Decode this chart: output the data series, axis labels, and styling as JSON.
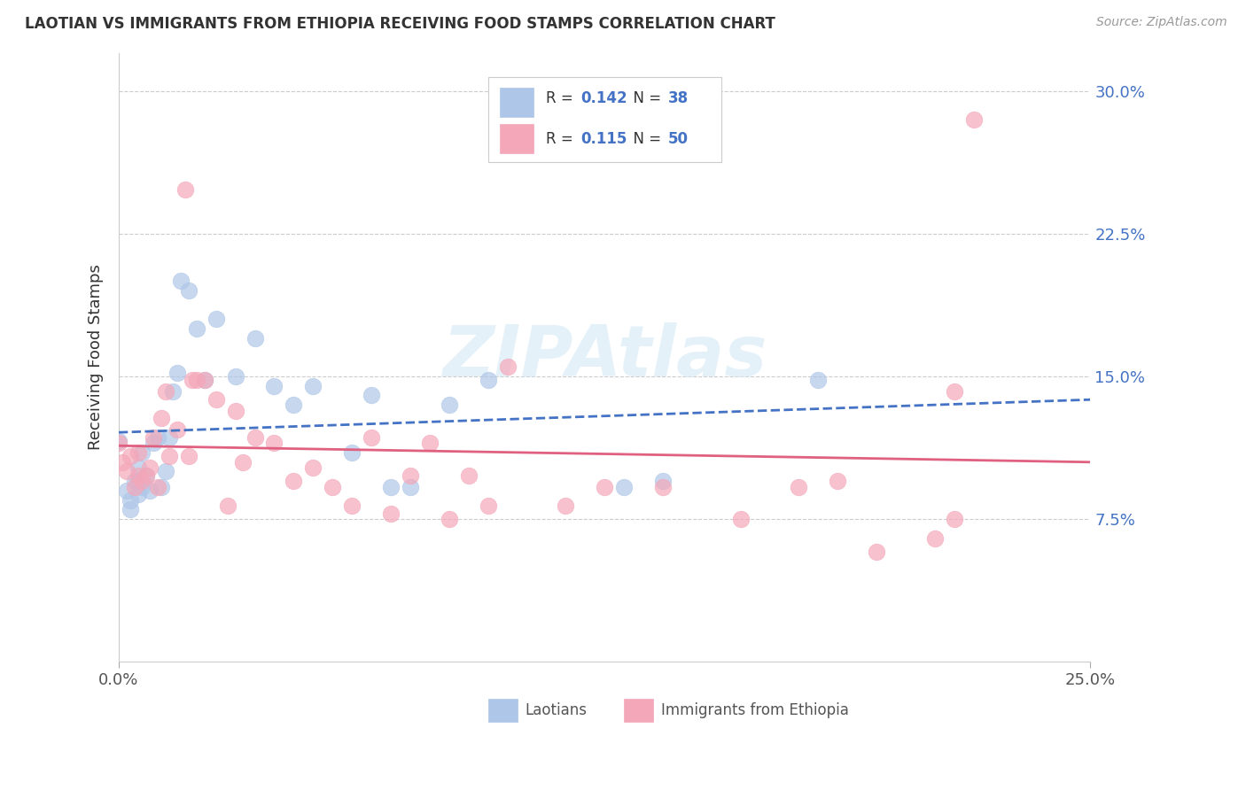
{
  "title": "LAOTIAN VS IMMIGRANTS FROM ETHIOPIA RECEIVING FOOD STAMPS CORRELATION CHART",
  "source": "Source: ZipAtlas.com",
  "ylabel": "Receiving Food Stamps",
  "y_ticks": [
    0.075,
    0.15,
    0.225,
    0.3
  ],
  "y_tick_labels": [
    "7.5%",
    "15.0%",
    "22.5%",
    "30.0%"
  ],
  "x_min": 0.0,
  "x_max": 0.25,
  "y_min": 0.0,
  "y_max": 0.32,
  "legend_label1": "Laotians",
  "legend_label2": "Immigrants from Ethiopia",
  "color_blue": "#aec6e8",
  "color_pink": "#f4a7b9",
  "color_blue_dark": "#4472c4",
  "color_pink_dark": "#e06080",
  "watermark": "ZIPAtlas",
  "blue_x": [
    0.0,
    0.002,
    0.003,
    0.003,
    0.004,
    0.005,
    0.005,
    0.005,
    0.006,
    0.006,
    0.007,
    0.008,
    0.009,
    0.01,
    0.011,
    0.012,
    0.013,
    0.014,
    0.015,
    0.016,
    0.018,
    0.02,
    0.022,
    0.025,
    0.03,
    0.035,
    0.04,
    0.045,
    0.05,
    0.06,
    0.065,
    0.07,
    0.075,
    0.085,
    0.095,
    0.13,
    0.14,
    0.18
  ],
  "blue_y": [
    0.116,
    0.09,
    0.085,
    0.08,
    0.095,
    0.088,
    0.095,
    0.102,
    0.092,
    0.11,
    0.098,
    0.09,
    0.115,
    0.118,
    0.092,
    0.1,
    0.118,
    0.142,
    0.152,
    0.2,
    0.195,
    0.175,
    0.148,
    0.18,
    0.15,
    0.17,
    0.145,
    0.135,
    0.145,
    0.11,
    0.14,
    0.092,
    0.092,
    0.135,
    0.148,
    0.092,
    0.095,
    0.148
  ],
  "pink_x": [
    0.0,
    0.001,
    0.002,
    0.003,
    0.004,
    0.005,
    0.005,
    0.006,
    0.007,
    0.008,
    0.009,
    0.01,
    0.011,
    0.012,
    0.013,
    0.015,
    0.017,
    0.018,
    0.019,
    0.02,
    0.022,
    0.025,
    0.028,
    0.03,
    0.032,
    0.035,
    0.04,
    0.045,
    0.05,
    0.055,
    0.06,
    0.065,
    0.07,
    0.075,
    0.08,
    0.085,
    0.09,
    0.095,
    0.1,
    0.115,
    0.125,
    0.14,
    0.16,
    0.175,
    0.185,
    0.195,
    0.21,
    0.215,
    0.215,
    0.22
  ],
  "pink_y": [
    0.115,
    0.105,
    0.1,
    0.108,
    0.092,
    0.098,
    0.11,
    0.095,
    0.098,
    0.102,
    0.118,
    0.092,
    0.128,
    0.142,
    0.108,
    0.122,
    0.248,
    0.108,
    0.148,
    0.148,
    0.148,
    0.138,
    0.082,
    0.132,
    0.105,
    0.118,
    0.115,
    0.095,
    0.102,
    0.092,
    0.082,
    0.118,
    0.078,
    0.098,
    0.115,
    0.075,
    0.098,
    0.082,
    0.155,
    0.082,
    0.092,
    0.092,
    0.075,
    0.092,
    0.095,
    0.058,
    0.065,
    0.075,
    0.142,
    0.285
  ]
}
